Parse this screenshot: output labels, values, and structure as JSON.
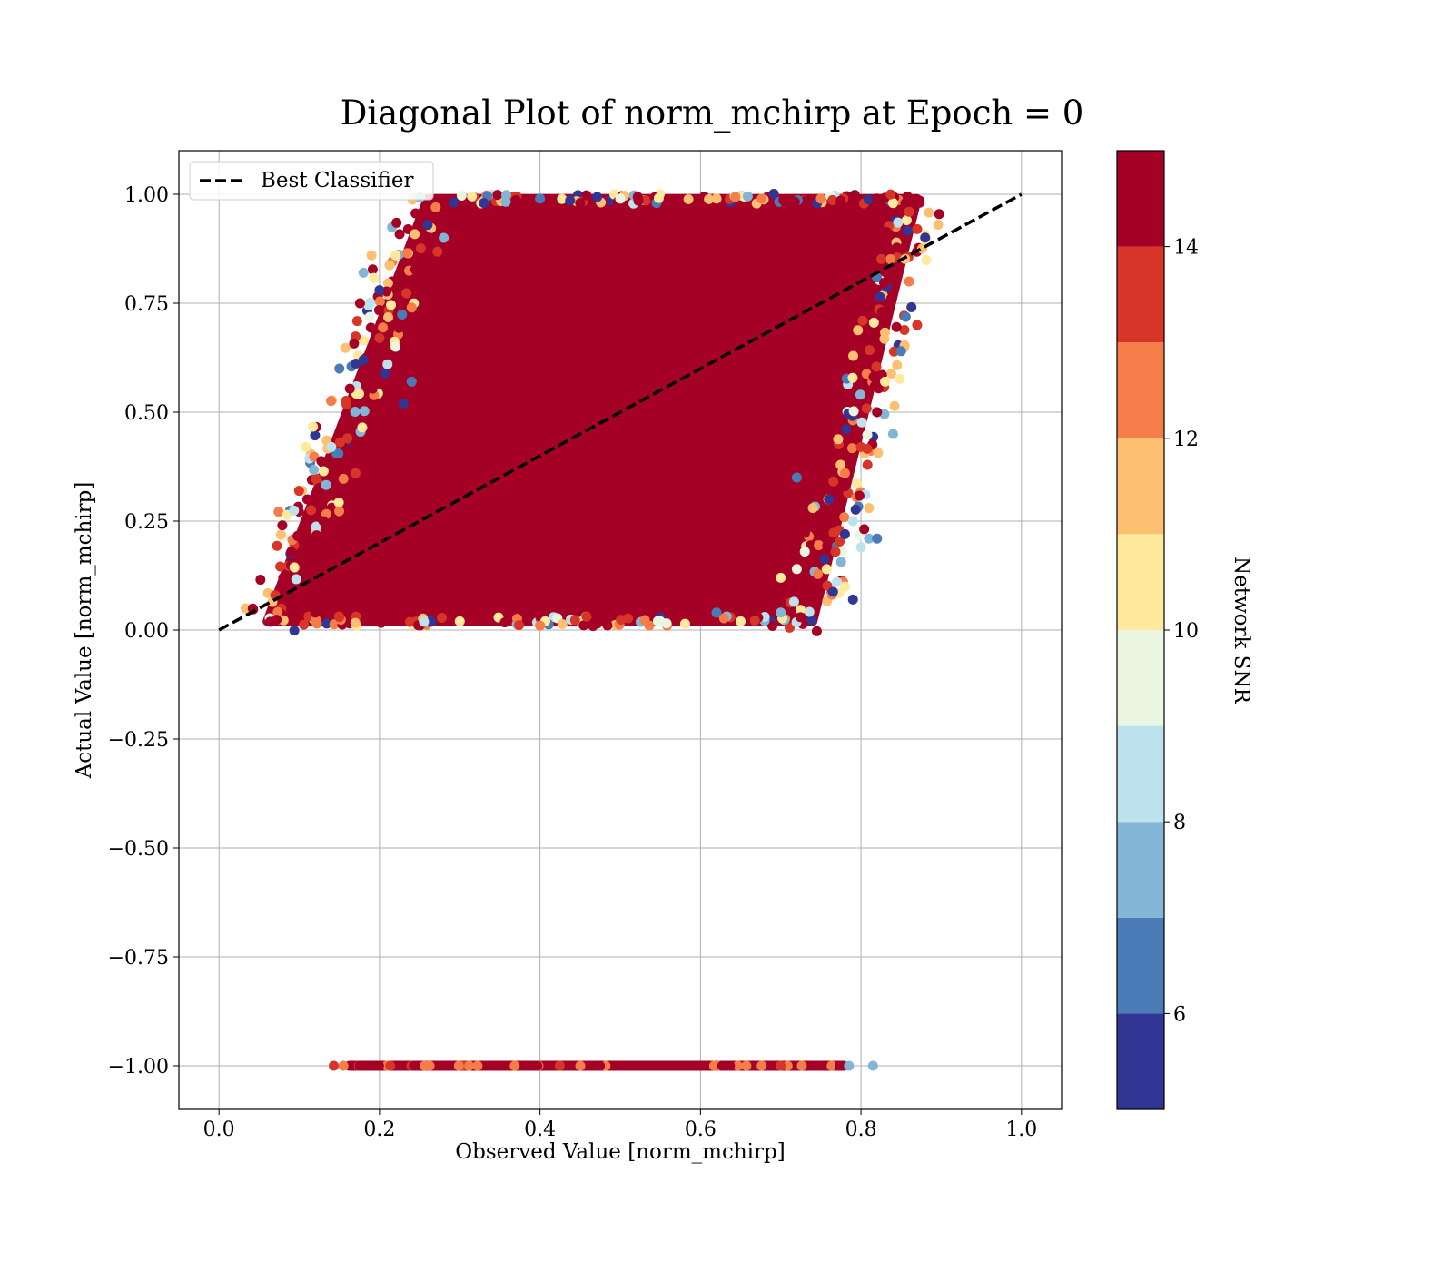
{
  "chart_data": {
    "type": "scatter",
    "title": "Diagonal Plot of norm_mchirp at Epoch = 0",
    "xlabel": "Observed Value [norm_mchirp]",
    "ylabel": "Actual Value [norm_mchirp]",
    "xlim": [
      -0.05,
      1.05
    ],
    "ylim": [
      -1.1,
      1.1
    ],
    "xticks": [
      0.0,
      0.2,
      0.4,
      0.6,
      0.8,
      1.0
    ],
    "xtick_labels": [
      "0.0",
      "0.2",
      "0.4",
      "0.6",
      "0.8",
      "1.0"
    ],
    "yticks": [
      -1.0,
      -0.75,
      -0.5,
      -0.25,
      0.0,
      0.25,
      0.5,
      0.75,
      1.0
    ],
    "ytick_labels": [
      "−1.00",
      "−0.75",
      "−0.50",
      "−0.25",
      "0.00",
      "0.25",
      "0.50",
      "0.75",
      "1.00"
    ],
    "grid": true,
    "legend": {
      "placement": "upper-left",
      "entries": [
        {
          "label": "Best Classifier",
          "style": "dashed",
          "color": "#000000"
        }
      ]
    },
    "reference_line": {
      "name": "Best Classifier",
      "x": [
        0.0,
        1.0
      ],
      "y": [
        0.0,
        1.0
      ]
    },
    "colorbar": {
      "label": "Network SNR",
      "range": [
        5,
        15
      ],
      "ticks": [
        6,
        8,
        10,
        12,
        14
      ],
      "tick_labels": [
        "6",
        "8",
        "10",
        "12",
        "14"
      ],
      "bins": [
        {
          "from": 5,
          "to": 6,
          "color": "#313695"
        },
        {
          "from": 6,
          "to": 7,
          "color": "#4a7bb7"
        },
        {
          "from": 7,
          "to": 8,
          "color": "#83b6d6"
        },
        {
          "from": 8,
          "to": 9,
          "color": "#bde2ed"
        },
        {
          "from": 9,
          "to": 10,
          "color": "#eaf6e1"
        },
        {
          "from": 10,
          "to": 11,
          "color": "#fee99d"
        },
        {
          "from": 11,
          "to": 12,
          "color": "#fdbf71"
        },
        {
          "from": 12,
          "to": 13,
          "color": "#f57d4a"
        },
        {
          "from": 13,
          "to": 14,
          "color": "#d73527"
        },
        {
          "from": 14,
          "to": 15,
          "color": "#a50026"
        }
      ]
    },
    "main_cluster": {
      "description_region": "parallelogram",
      "corners": [
        [
          0.06,
          0.02
        ],
        [
          0.74,
          0.02
        ],
        [
          0.87,
          0.99
        ],
        [
          0.26,
          0.99
        ]
      ],
      "dominant_snr": 15
    },
    "series": [
      {
        "name": "predictions",
        "points": [
          [
            0.1,
            0.05,
            15
          ],
          [
            0.12,
            0.04,
            14
          ],
          [
            0.15,
            0.03,
            13
          ],
          [
            0.3,
            0.02,
            10
          ],
          [
            0.4,
            0.01,
            12
          ],
          [
            0.55,
            0.02,
            9
          ],
          [
            0.65,
            0.02,
            10
          ],
          [
            0.7,
            0.04,
            7
          ],
          [
            0.09,
            0.18,
            15
          ],
          [
            0.11,
            0.3,
            15
          ],
          [
            0.15,
            0.6,
            6
          ],
          [
            0.18,
            0.62,
            5
          ],
          [
            0.18,
            0.82,
            7
          ],
          [
            0.2,
            0.78,
            5
          ],
          [
            0.19,
            0.86,
            11
          ],
          [
            0.17,
            0.36,
            13
          ],
          [
            0.16,
            0.44,
            13
          ],
          [
            0.22,
            0.86,
            10
          ],
          [
            0.2,
            0.67,
            13
          ],
          [
            0.21,
            0.61,
            8
          ],
          [
            0.23,
            0.52,
            5
          ],
          [
            0.27,
            0.97,
            12
          ],
          [
            0.26,
            0.93,
            5
          ],
          [
            0.28,
            0.9,
            7
          ],
          [
            0.33,
            0.98,
            5
          ],
          [
            0.4,
            0.99,
            6
          ],
          [
            0.5,
            0.99,
            9
          ],
          [
            0.62,
            0.99,
            11
          ],
          [
            0.75,
            0.99,
            12
          ],
          [
            0.82,
            0.99,
            14
          ],
          [
            0.86,
            0.96,
            13
          ],
          [
            0.87,
            0.92,
            13
          ],
          [
            0.86,
            0.8,
            12
          ],
          [
            0.87,
            0.7,
            13
          ],
          [
            0.85,
            0.64,
            6
          ],
          [
            0.83,
            0.57,
            10
          ],
          [
            0.82,
            0.5,
            14
          ],
          [
            0.8,
            0.42,
            13
          ],
          [
            0.78,
            0.36,
            12
          ],
          [
            0.76,
            0.3,
            5
          ],
          [
            0.78,
            0.33,
            14
          ],
          [
            0.74,
            0.28,
            11
          ],
          [
            0.81,
            0.28,
            11
          ],
          [
            0.81,
            0.21,
            7
          ],
          [
            0.78,
            0.22,
            5
          ],
          [
            0.79,
            0.25,
            8
          ],
          [
            0.82,
            0.21,
            6
          ],
          [
            0.77,
            0.11,
            8
          ],
          [
            0.78,
            0.1,
            10
          ],
          [
            0.79,
            0.07,
            5
          ],
          [
            0.73,
            0.18,
            9
          ],
          [
            0.72,
            0.14,
            9
          ],
          [
            0.7,
            0.12,
            10
          ],
          [
            0.68,
            0.09,
            14
          ],
          [
            0.66,
            0.07,
            15
          ],
          [
            0.62,
            0.04,
            6
          ],
          [
            0.8,
            0.19,
            8
          ],
          [
            0.84,
            0.45,
            7
          ],
          [
            0.76,
            0.41,
            15
          ],
          [
            0.72,
            0.35,
            6
          ],
          [
            0.25,
            0.82,
            14
          ],
          [
            0.24,
            0.74,
            12
          ],
          [
            0.22,
            0.65,
            9
          ],
          [
            0.24,
            0.57,
            6
          ],
          [
            0.14,
            0.42,
            8
          ],
          [
            0.13,
            0.25,
            14
          ],
          [
            0.08,
            0.12,
            15
          ],
          [
            0.07,
            0.08,
            13
          ],
          [
            0.6,
            0.97,
            14
          ],
          [
            0.45,
            0.98,
            15
          ]
        ]
      },
      {
        "name": "missing",
        "y": -1.0,
        "x_range": [
          0.14,
          0.79
        ],
        "outliers": [
          [
            0.815,
            -1.0,
            7
          ],
          [
            0.785,
            -1.0,
            7
          ],
          [
            0.143,
            -1.0,
            13
          ],
          [
            0.155,
            -1.0,
            12
          ],
          [
            0.175,
            -1.0,
            14
          ]
        ]
      }
    ]
  }
}
